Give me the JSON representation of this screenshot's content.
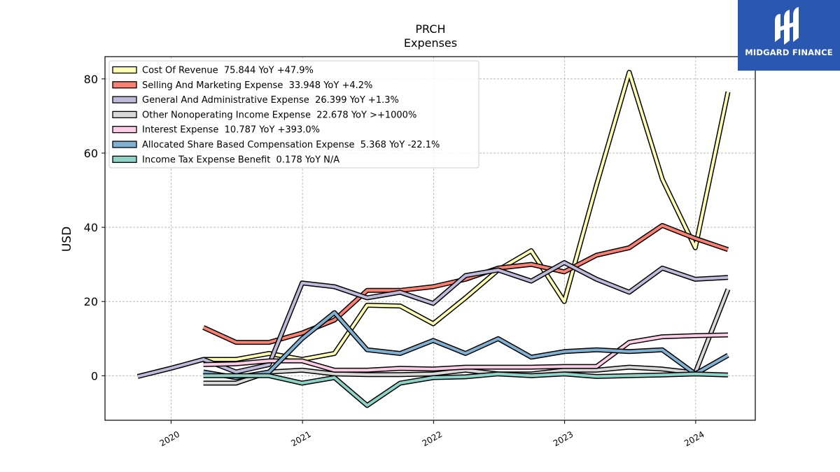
{
  "chart_data": {
    "type": "line",
    "title": "PRCH",
    "subtitle": "Expenses",
    "ylabel": "USD",
    "xlabel": "",
    "xlim": [
      "2019-07-01",
      "2024-06-15"
    ],
    "ylim": [
      -12,
      86
    ],
    "yticks": [
      0,
      20,
      40,
      60,
      80
    ],
    "xticks": [
      "2020",
      "2021",
      "2022",
      "2023",
      "2024"
    ],
    "grid": true,
    "legend_position": "top-left",
    "x": [
      "2019-09-30",
      "2019-12-31",
      "2020-03-31",
      "2020-06-30",
      "2020-09-30",
      "2020-12-31",
      "2021-03-31",
      "2021-06-30",
      "2021-09-30",
      "2021-12-31",
      "2022-03-31",
      "2022-06-30",
      "2022-09-30",
      "2022-12-31",
      "2023-03-31",
      "2023-06-30",
      "2023-09-30",
      "2023-12-31",
      "2024-03-31"
    ],
    "series": [
      {
        "name": "Cost Of Revenue",
        "legend": "Cost Of Revenue  75.844 YoY +47.9%",
        "color": "#ffffb3",
        "values": [
          null,
          null,
          4.4,
          4.4,
          6.0,
          4.4,
          6.0,
          19.0,
          18.8,
          14.0,
          21.0,
          28.5,
          33.7,
          20.0,
          51.5,
          81.8,
          53.0,
          34.5,
          76.5
        ]
      },
      {
        "name": "Selling And Marketing Expense",
        "legend": "Selling And Marketing Expense  33.948 YoY +4.2%",
        "color": "#fb8072",
        "values": [
          null,
          null,
          13.0,
          9.0,
          9.0,
          11.5,
          15.0,
          23.0,
          23.0,
          24.0,
          26.0,
          29.0,
          30.0,
          28.0,
          32.5,
          34.5,
          40.5,
          37.0,
          34.0
        ]
      },
      {
        "name": "General And Administrative Expense",
        "legend": "General And Administrative Expense  26.399 YoY +1.3%",
        "color": "#bebada",
        "values": [
          -0.2,
          2.0,
          4.4,
          1.0,
          3.0,
          25.0,
          24.0,
          21.0,
          22.5,
          19.5,
          27.0,
          28.5,
          25.5,
          30.5,
          26.0,
          22.5,
          29.0,
          26.0,
          26.5
        ]
      },
      {
        "name": "Other Nonoperating Income Expense",
        "legend": "Other Nonoperating Income Expense  22.678 YoY >+1000%",
        "color": "#d9d9d9",
        "values": [
          null,
          null,
          -2.0,
          -2.0,
          1.0,
          1.5,
          0.5,
          0.3,
          0.3,
          0.5,
          1.5,
          0.5,
          0.5,
          1.5,
          1.5,
          2.3,
          1.8,
          0.8,
          23.3
        ]
      },
      {
        "name": "Interest Expense",
        "legend": "Interest Expense  10.787 YoY +393.0%",
        "color": "#fccde5",
        "values": [
          null,
          null,
          3.0,
          3.2,
          4.0,
          4.0,
          1.5,
          1.5,
          2.0,
          1.8,
          2.3,
          2.3,
          2.3,
          2.5,
          2.5,
          9.0,
          10.5,
          10.8,
          11.0
        ]
      },
      {
        "name": "Allocated Share Based Compensation Expense",
        "legend": "Allocated Share Based Compensation Expense  5.368 YoY -22.1%",
        "color": "#80b1d3",
        "values": [
          null,
          null,
          1.0,
          -0.5,
          1.0,
          10.0,
          17.0,
          7.0,
          6.0,
          9.5,
          6.0,
          10.0,
          5.0,
          6.5,
          7.0,
          6.5,
          7.0,
          0.5,
          5.5
        ]
      },
      {
        "name": "Income Tax Expense Benefit",
        "legend": "Income Tax Expense Benefit  0.178 YoY N/A",
        "color": "#8dd3c7",
        "values": [
          null,
          null,
          0.0,
          0.0,
          0.0,
          -2.0,
          -0.5,
          -8.0,
          -2.0,
          -0.5,
          -0.3,
          0.5,
          0.0,
          0.5,
          -0.2,
          0.0,
          0.2,
          0.5,
          0.2
        ]
      }
    ]
  },
  "logo": {
    "text": "MIDGARD FINANCE",
    "color": "#2a58b0"
  }
}
